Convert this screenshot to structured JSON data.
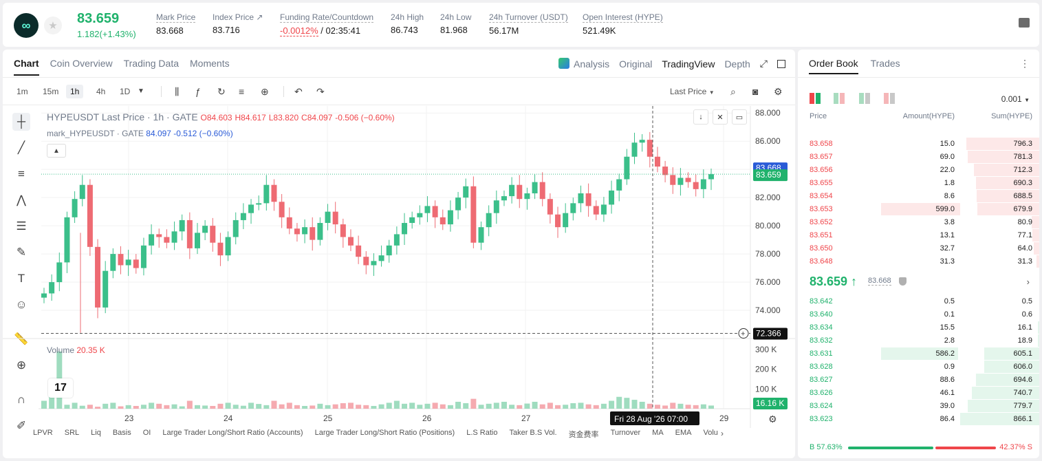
{
  "header": {
    "last_price": "83.659",
    "change": "1.182(+1.43%)",
    "stats": [
      {
        "label": "Mark Price",
        "value": "83.668"
      },
      {
        "label": "Index Price ↗",
        "value": "83.716"
      },
      {
        "label": "Funding Rate/Countdown",
        "value_neg": "-0.0012%",
        "value": " / 02:35:41"
      },
      {
        "label": "24h High",
        "value": "86.743"
      },
      {
        "label": "24h Low",
        "value": "81.968"
      },
      {
        "label": "24h Turnover (USDT)",
        "value": "56.17M"
      },
      {
        "label": "Open Interest (HYPE)",
        "value": "521.49K"
      }
    ]
  },
  "chart_tabs": {
    "tabs": [
      "Chart",
      "Coin Overview",
      "Trading Data",
      "Moments"
    ],
    "views": [
      "Analysis",
      "Original",
      "TradingView",
      "Depth"
    ]
  },
  "toolbar": {
    "intervals": [
      "1m",
      "15m",
      "1h",
      "4h",
      "1D"
    ],
    "price_source": "Last Price"
  },
  "legend": {
    "title": "HYPEUSDT Last Price · 1h · GATE",
    "o": "O84.603",
    "h": "H84.617",
    "l": "L83.820",
    "c": "C84.097",
    "chg": "-0.506 (−0.60%)",
    "mark_label": "mark_HYPEUSDT · GATE",
    "mark_val": "84.097  -0.512  (−0.60%)"
  },
  "volume_legend": {
    "label": "Volume",
    "value": "20.35 K"
  },
  "crosshair": {
    "date_label": "Fri 28 Aug '26   07:00",
    "price_label": "72.366"
  },
  "price_tags": {
    "mark": "83.668",
    "last": "83.659",
    "volume": "16.16 K"
  },
  "indicators": [
    "LPVR",
    "SRL",
    "Liq",
    "Basis",
    "OI",
    "Large Trader Long/Short Ratio (Accounts)",
    "Large Trader Long/Short Ratio (Positions)",
    "L.S Ratio",
    "Taker B.S Vol.",
    "资金费率",
    "Turnover",
    "MA",
    "EMA",
    "Volu"
  ],
  "chart_data": {
    "type": "candlestick",
    "title": "HYPEUSDT Last Price · 1h · GATE",
    "y_ticks": [
      "88.000",
      "86.000",
      "84.000",
      "82.000",
      "80.000",
      "78.000",
      "76.000",
      "74.000"
    ],
    "y_range": [
      72.0,
      88.5
    ],
    "x_ticks": [
      "23",
      "24",
      "25",
      "26",
      "27",
      "29"
    ],
    "volume_ticks": [
      "300 K",
      "200 K",
      "100 K"
    ],
    "close_series": [
      75.2,
      76.0,
      77.4,
      80.6,
      81.9,
      82.9,
      78.5,
      74.2,
      76.8,
      78.0,
      77.2,
      77.6,
      77.0,
      78.6,
      79.4,
      79.2,
      78.8,
      79.6,
      80.4,
      78.4,
      79.5,
      80.0,
      78.8,
      77.9,
      79.2,
      80.4,
      80.9,
      81.5,
      81.6,
      82.9,
      81.7,
      80.6,
      79.8,
      79.4,
      79.9,
      79.0,
      80.2,
      81.0,
      80.1,
      79.2,
      78.6,
      77.8,
      77.2,
      77.5,
      77.9,
      78.6,
      79.4,
      80.2,
      80.6,
      80.9,
      81.4,
      80.6,
      80.1,
      81.1,
      82.0,
      82.8,
      78.8,
      79.9,
      80.9,
      81.8,
      82.1,
      82.9,
      81.9,
      82.3,
      83.1,
      81.9,
      80.8,
      79.9,
      80.9,
      81.6,
      82.3,
      81.4,
      80.8,
      81.5,
      82.5,
      83.3,
      84.9,
      85.9,
      86.1,
      84.9,
      84.2,
      83.6,
      82.9,
      83.4,
      83.1,
      82.6,
      83.3,
      83.659
    ],
    "volume_series": [
      40,
      60,
      290,
      20,
      30,
      15,
      20,
      10,
      25,
      30,
      12,
      18,
      14,
      20,
      30,
      25,
      18,
      22,
      12,
      40,
      18,
      16,
      14,
      25,
      30,
      20,
      15,
      30,
      24,
      18,
      40,
      22,
      30,
      18,
      14,
      16,
      25,
      18,
      22,
      28,
      30,
      20,
      18,
      14,
      22,
      30,
      40,
      25,
      30,
      20,
      25,
      30,
      22,
      18,
      35,
      28,
      50,
      20,
      25,
      30,
      35,
      20,
      18,
      26,
      35,
      22,
      30,
      18,
      20,
      28,
      30,
      22,
      18,
      25,
      40,
      60,
      55,
      45,
      35,
      25,
      20,
      16,
      30,
      25,
      20,
      18,
      22,
      16
    ]
  },
  "order_book": {
    "tabs": [
      "Order Book",
      "Trades"
    ],
    "tick": "0.001",
    "headers": [
      "Price",
      "Amount(HYPE)",
      "Sum(HYPE)"
    ],
    "asks": [
      {
        "price": "83.658",
        "amount": "15.0",
        "sum": "796.3"
      },
      {
        "price": "83.657",
        "amount": "69.0",
        "sum": "781.3"
      },
      {
        "price": "83.656",
        "amount": "22.0",
        "sum": "712.3"
      },
      {
        "price": "83.655",
        "amount": "1.8",
        "sum": "690.3"
      },
      {
        "price": "83.654",
        "amount": "8.6",
        "sum": "688.5"
      },
      {
        "price": "83.653",
        "amount": "599.0",
        "sum": "679.9"
      },
      {
        "price": "83.652",
        "amount": "3.8",
        "sum": "80.9"
      },
      {
        "price": "83.651",
        "amount": "13.1",
        "sum": "77.1"
      },
      {
        "price": "83.650",
        "amount": "32.7",
        "sum": "64.0"
      },
      {
        "price": "83.648",
        "amount": "31.3",
        "sum": "31.3"
      }
    ],
    "mid_price": "83.659 ↑",
    "mark_price": "83.668",
    "bids": [
      {
        "price": "83.642",
        "amount": "0.5",
        "sum": "0.5"
      },
      {
        "price": "83.640",
        "amount": "0.1",
        "sum": "0.6"
      },
      {
        "price": "83.634",
        "amount": "15.5",
        "sum": "16.1"
      },
      {
        "price": "83.632",
        "amount": "2.8",
        "sum": "18.9"
      },
      {
        "price": "83.631",
        "amount": "586.2",
        "sum": "605.1"
      },
      {
        "price": "83.628",
        "amount": "0.9",
        "sum": "606.0"
      },
      {
        "price": "83.627",
        "amount": "88.6",
        "sum": "694.6"
      },
      {
        "price": "83.626",
        "amount": "46.1",
        "sum": "740.7"
      },
      {
        "price": "83.624",
        "amount": "39.0",
        "sum": "779.7"
      },
      {
        "price": "83.623",
        "amount": "86.4",
        "sum": "866.1"
      }
    ],
    "buy_ratio": "B 57.63%",
    "sell_ratio": "42.37% S",
    "buy_pct": 57.63
  }
}
